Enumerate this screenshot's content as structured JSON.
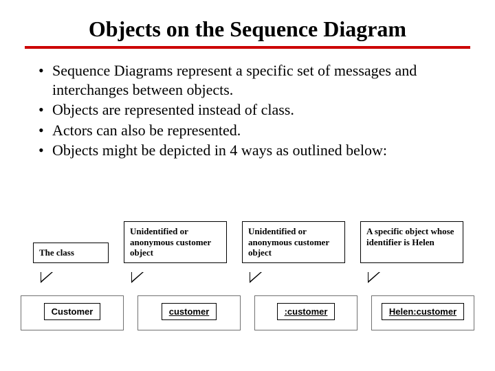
{
  "slide": {
    "title": "Objects on the Sequence Diagram",
    "divider_color": "#cc0000",
    "bullets": [
      "Sequence Diagrams represent a specific set of messages and interchanges between objects.",
      "Objects are represented instead of class.",
      "Actors can also be represented.",
      "Objects might be depicted in 4 ways as outlined below:"
    ],
    "callouts": [
      {
        "text": "The class"
      },
      {
        "text": "Unidentified or anonymous customer object"
      },
      {
        "text": "Unidentified or anonymous customer object"
      },
      {
        "text": "A specific object whose identifier is Helen"
      }
    ],
    "objects": [
      {
        "label": "Customer",
        "underlined": false
      },
      {
        "label": "customer",
        "underlined": true
      },
      {
        "label": ":customer",
        "underlined": true
      },
      {
        "label": "Helen:customer",
        "underlined": true
      }
    ],
    "font": {
      "title_size_pt": 32,
      "bullet_size_pt": 22,
      "callout_size_pt": 13,
      "object_label_size_pt": 13
    },
    "colors": {
      "background": "#ffffff",
      "text": "#000000",
      "box_border": "#000000",
      "outer_border": "#707070"
    }
  }
}
